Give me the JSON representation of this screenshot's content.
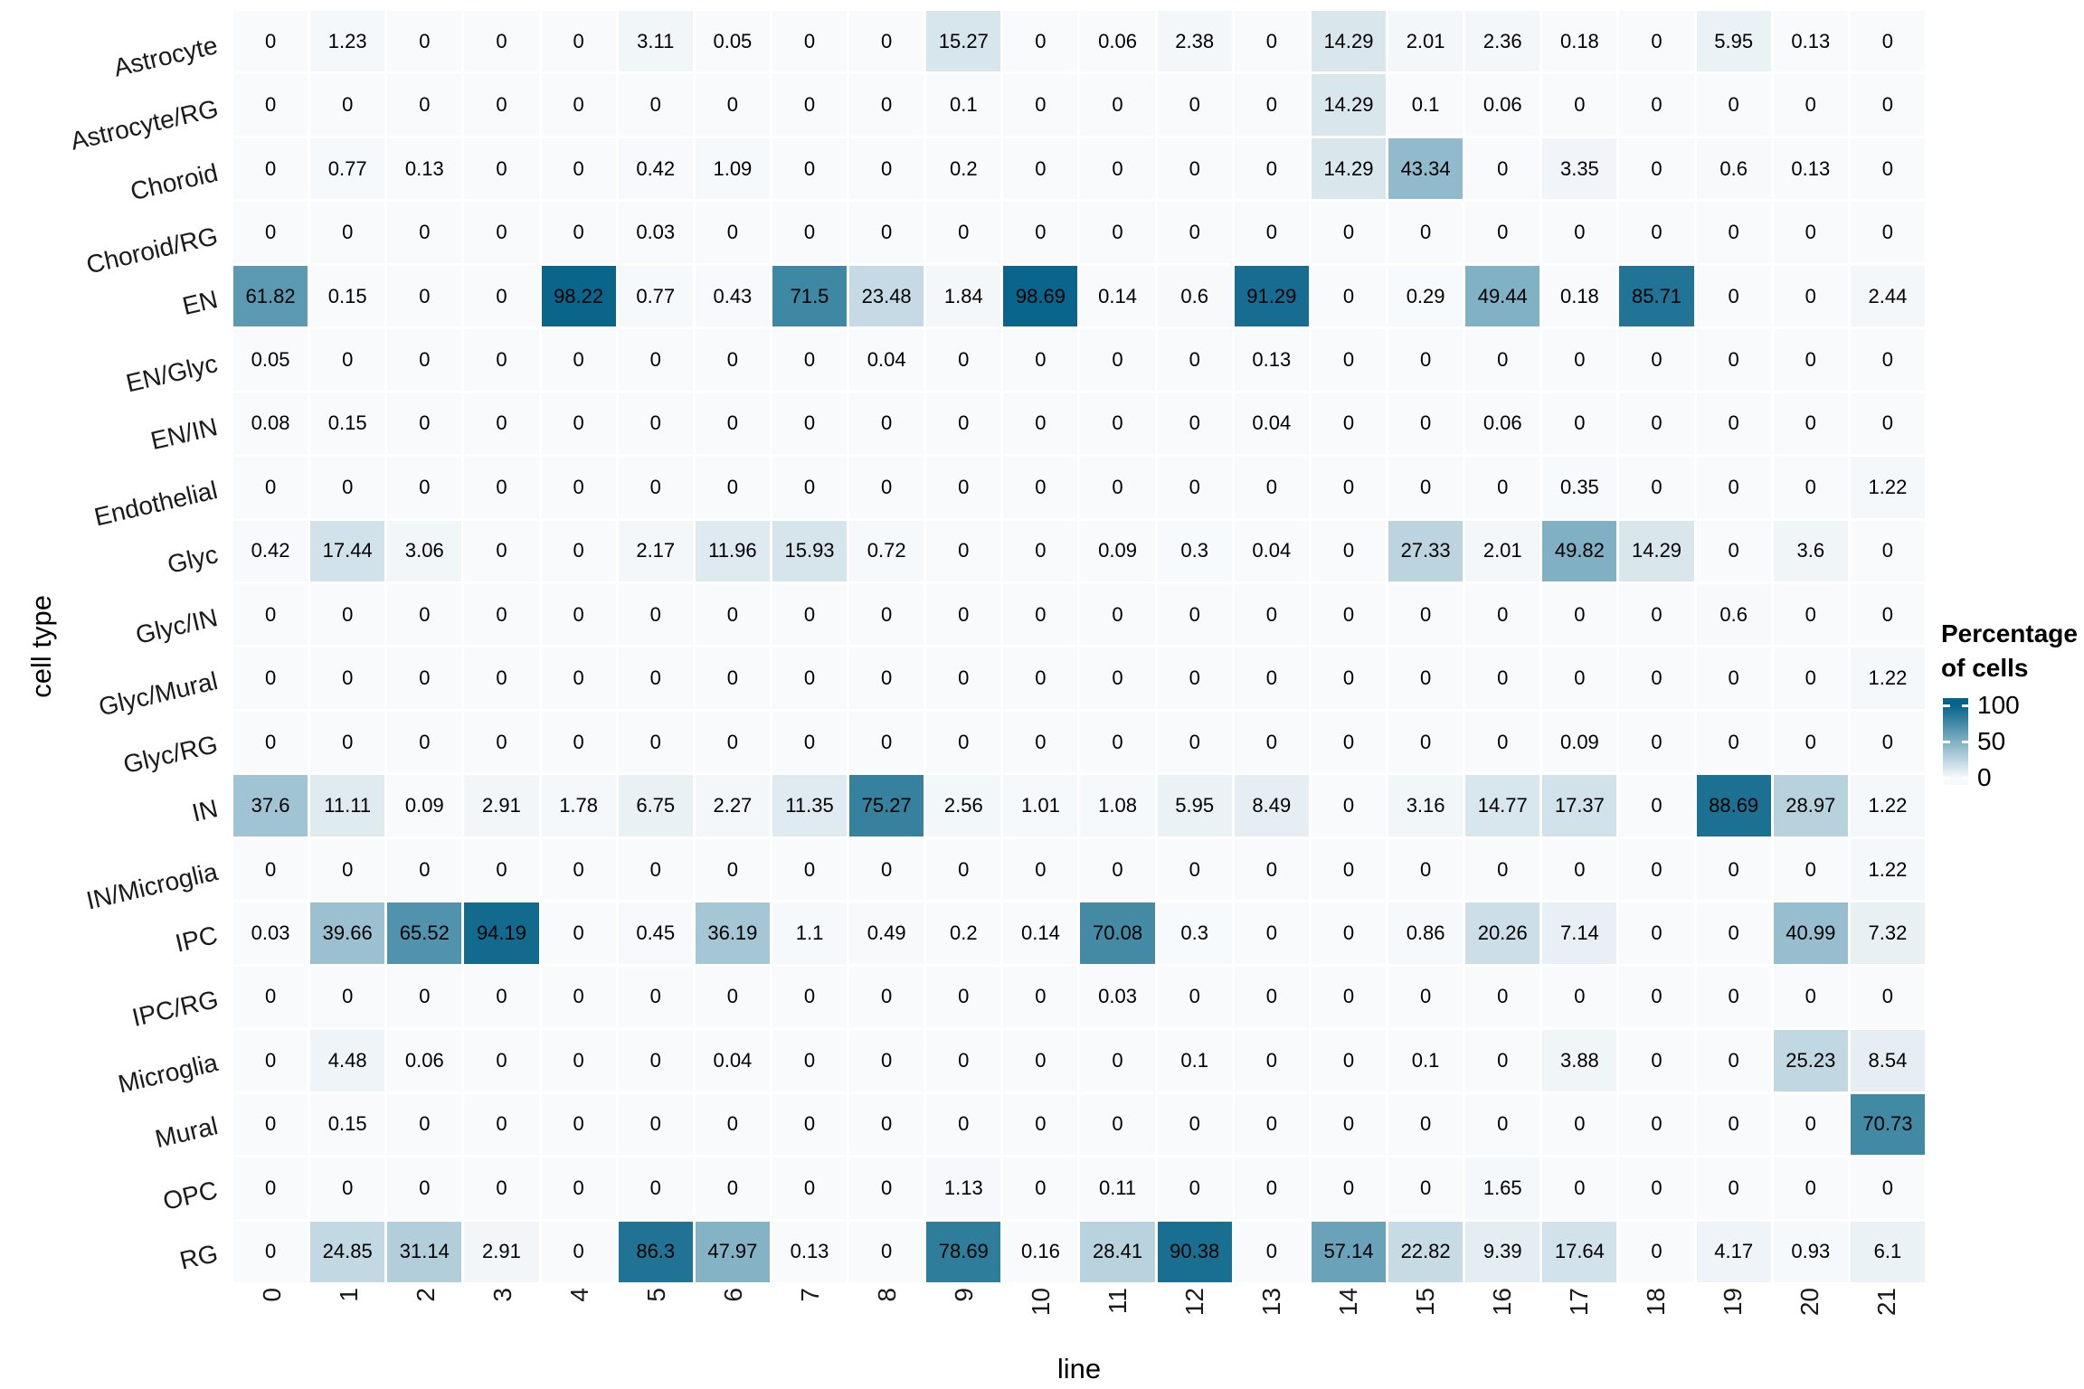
{
  "chart_data": {
    "type": "heatmap",
    "title": "",
    "xlabel": "line",
    "ylabel": "cell type",
    "legend": {
      "title_line1": "Percentage",
      "title_line2": "of cells",
      "ticks": [
        100,
        50,
        0
      ]
    },
    "color_stops": [
      {
        "value": 0,
        "color": "#f8fafc"
      },
      {
        "value": 25,
        "color": "#c2d8e2"
      },
      {
        "value": 50,
        "color": "#7fb0c4"
      },
      {
        "value": 75,
        "color": "#35819e"
      },
      {
        "value": 100,
        "color": "#07638a"
      }
    ],
    "value_range": [
      0,
      100
    ],
    "grid": "white gaps between tiles",
    "legend_position": "right",
    "columns": [
      "0",
      "1",
      "2",
      "3",
      "4",
      "5",
      "6",
      "7",
      "8",
      "9",
      "10",
      "11",
      "12",
      "13",
      "14",
      "15",
      "16",
      "17",
      "18",
      "19",
      "20",
      "21"
    ],
    "rows": [
      "Astrocyte",
      "Astrocyte/RG",
      "Choroid",
      "Choroid/RG",
      "EN",
      "EN/Glyc",
      "EN/IN",
      "Endothelial",
      "Glyc",
      "Glyc/IN",
      "Glyc/Mural",
      "Glyc/RG",
      "IN",
      "IN/Microglia",
      "IPC",
      "IPC/RG",
      "Microglia",
      "Mural",
      "OPC",
      "RG"
    ],
    "values": [
      [
        0,
        1.23,
        0,
        0,
        0,
        3.11,
        0.05,
        0,
        0,
        15.27,
        0,
        0.06,
        2.38,
        0,
        14.29,
        2.01,
        2.36,
        0.18,
        0,
        5.95,
        0.13,
        0
      ],
      [
        0,
        0,
        0,
        0,
        0,
        0,
        0,
        0,
        0,
        0.1,
        0,
        0,
        0,
        0,
        14.29,
        0.1,
        0.06,
        0,
        0,
        0,
        0,
        0
      ],
      [
        0,
        0.77,
        0.13,
        0,
        0,
        0.42,
        1.09,
        0,
        0,
        0.2,
        0,
        0,
        0,
        0,
        14.29,
        43.34,
        0,
        3.35,
        0,
        0.6,
        0.13,
        0
      ],
      [
        0,
        0,
        0,
        0,
        0,
        0.03,
        0,
        0,
        0,
        0,
        0,
        0,
        0,
        0,
        0,
        0,
        0,
        0,
        0,
        0,
        0,
        0
      ],
      [
        61.82,
        0.15,
        0,
        0,
        98.22,
        0.77,
        0.43,
        71.5,
        23.48,
        1.84,
        98.69,
        0.14,
        0.6,
        91.29,
        0,
        0.29,
        49.44,
        0.18,
        85.71,
        0,
        0,
        2.44
      ],
      [
        0.05,
        0,
        0,
        0,
        0,
        0,
        0,
        0,
        0.04,
        0,
        0,
        0,
        0,
        0.13,
        0,
        0,
        0,
        0,
        0,
        0,
        0,
        0
      ],
      [
        0.08,
        0.15,
        0,
        0,
        0,
        0,
        0,
        0,
        0,
        0,
        0,
        0,
        0,
        0.04,
        0,
        0,
        0.06,
        0,
        0,
        0,
        0,
        0
      ],
      [
        0,
        0,
        0,
        0,
        0,
        0,
        0,
        0,
        0,
        0,
        0,
        0,
        0,
        0,
        0,
        0,
        0,
        0.35,
        0,
        0,
        0,
        1.22
      ],
      [
        0.42,
        17.44,
        3.06,
        0,
        0,
        2.17,
        11.96,
        15.93,
        0.72,
        0,
        0,
        0.09,
        0.3,
        0.04,
        0,
        27.33,
        2.01,
        49.82,
        14.29,
        0,
        3.6,
        0
      ],
      [
        0,
        0,
        0,
        0,
        0,
        0,
        0,
        0,
        0,
        0,
        0,
        0,
        0,
        0,
        0,
        0,
        0,
        0,
        0,
        0.6,
        0,
        0
      ],
      [
        0,
        0,
        0,
        0,
        0,
        0,
        0,
        0,
        0,
        0,
        0,
        0,
        0,
        0,
        0,
        0,
        0,
        0,
        0,
        0,
        0,
        1.22
      ],
      [
        0,
        0,
        0,
        0,
        0,
        0,
        0,
        0,
        0,
        0,
        0,
        0,
        0,
        0,
        0,
        0,
        0,
        0.09,
        0,
        0,
        0,
        0
      ],
      [
        37.6,
        11.11,
        0.09,
        2.91,
        1.78,
        6.75,
        2.27,
        11.35,
        75.27,
        2.56,
        1.01,
        1.08,
        5.95,
        8.49,
        0,
        3.16,
        14.77,
        17.37,
        0,
        88.69,
        28.97,
        1.22
      ],
      [
        0,
        0,
        0,
        0,
        0,
        0,
        0,
        0,
        0,
        0,
        0,
        0,
        0,
        0,
        0,
        0,
        0,
        0,
        0,
        0,
        0,
        1.22
      ],
      [
        0.03,
        39.66,
        65.52,
        94.19,
        0,
        0.45,
        36.19,
        1.1,
        0.49,
        0.2,
        0.14,
        70.08,
        0.3,
        0,
        0,
        0.86,
        20.26,
        7.14,
        0,
        0,
        40.99,
        7.32
      ],
      [
        0,
        0,
        0,
        0,
        0,
        0,
        0,
        0,
        0,
        0,
        0,
        0.03,
        0,
        0,
        0,
        0,
        0,
        0,
        0,
        0,
        0,
        0
      ],
      [
        0,
        4.48,
        0.06,
        0,
        0,
        0,
        0.04,
        0,
        0,
        0,
        0,
        0,
        0.1,
        0,
        0,
        0.1,
        0,
        3.88,
        0,
        0,
        25.23,
        8.54
      ],
      [
        0,
        0.15,
        0,
        0,
        0,
        0,
        0,
        0,
        0,
        0,
        0,
        0,
        0,
        0,
        0,
        0,
        0,
        0,
        0,
        0,
        0,
        70.73
      ],
      [
        0,
        0,
        0,
        0,
        0,
        0,
        0,
        0,
        0,
        1.13,
        0,
        0.11,
        0,
        0,
        0,
        0,
        1.65,
        0,
        0,
        0,
        0,
        0
      ],
      [
        0,
        24.85,
        31.14,
        2.91,
        0,
        86.3,
        47.97,
        0.13,
        0,
        78.69,
        0.16,
        28.41,
        90.38,
        0,
        57.14,
        22.82,
        9.39,
        17.64,
        0,
        4.17,
        0.93,
        6.1
      ]
    ]
  }
}
